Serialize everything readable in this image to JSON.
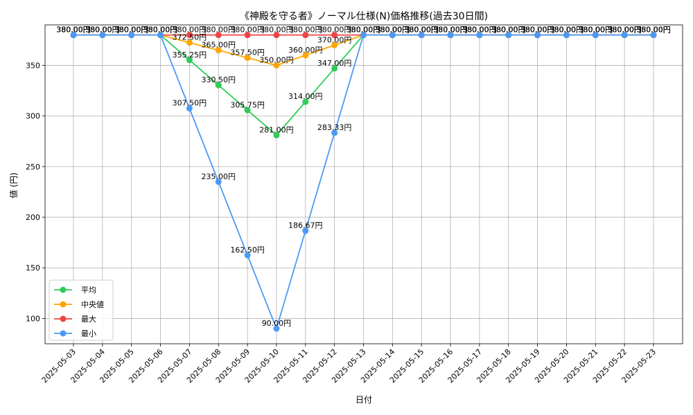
{
  "chart_data": {
    "type": "line",
    "title": "《神殿を守る者》ノーマル仕様(N)価格推移(過去30日間)",
    "xlabel": "日付",
    "ylabel": "値 (円)",
    "ylim": [
      75,
      390
    ],
    "yticks": [
      100,
      150,
      200,
      250,
      300,
      350
    ],
    "label_suffix": "円",
    "grid": true,
    "legend_position": "lower-left",
    "categories": [
      "2025-05-03",
      "2025-05-04",
      "2025-05-05",
      "2025-05-06",
      "2025-05-07",
      "2025-05-08",
      "2025-05-09",
      "2025-05-10",
      "2025-05-11",
      "2025-05-12",
      "2025-05-13",
      "2025-05-14",
      "2025-05-15",
      "2025-05-16",
      "2025-05-17",
      "2025-05-18",
      "2025-05-19",
      "2025-05-20",
      "2025-05-21",
      "2025-05-22",
      "2025-05-23"
    ],
    "series": [
      {
        "name": "平均",
        "color": "#2ecc59",
        "values": [
          380,
          380,
          380,
          380,
          355.25,
          330.5,
          305.75,
          281,
          314,
          347,
          380,
          380,
          380,
          380,
          380,
          380,
          380,
          380,
          380,
          380,
          380
        ]
      },
      {
        "name": "中央値",
        "color": "#ffa500",
        "values": [
          380,
          380,
          380,
          380,
          372.5,
          365,
          357.5,
          350,
          360,
          370,
          380,
          380,
          380,
          380,
          380,
          380,
          380,
          380,
          380,
          380,
          380
        ]
      },
      {
        "name": "最大",
        "color": "#ef4444",
        "values": [
          380,
          380,
          380,
          380,
          380,
          380,
          380,
          380,
          380,
          380,
          380,
          380,
          380,
          380,
          380,
          380,
          380,
          380,
          380,
          380,
          380
        ]
      },
      {
        "name": "最小",
        "color": "#4a9af5",
        "values": [
          380,
          380,
          380,
          380,
          307.5,
          235,
          162.5,
          90,
          186.67,
          283.33,
          380,
          380,
          380,
          380,
          380,
          380,
          380,
          380,
          380,
          380,
          380
        ]
      }
    ]
  }
}
